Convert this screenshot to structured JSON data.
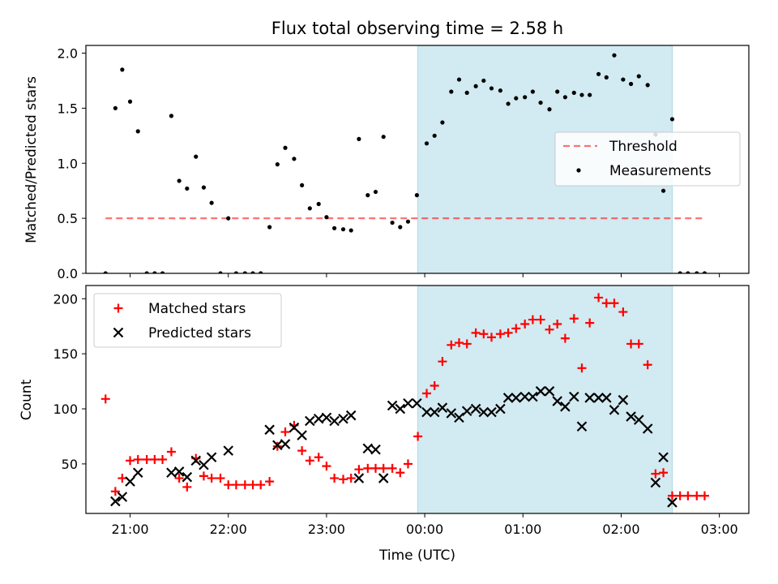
{
  "chart_data": {
    "title": "Flux total observing time = 2.58 h",
    "xlabel": "Time (UTC)",
    "x_unit": "hours UTC (values ≥ 24 are after midnight, tick labels wrap to 00:00)",
    "xlim": [
      20.55,
      27.3
    ],
    "x_ticks": [
      {
        "x": 21,
        "label": "21:00"
      },
      {
        "x": 22,
        "label": "22:00"
      },
      {
        "x": 23,
        "label": "23:00"
      },
      {
        "x": 24,
        "label": "00:00"
      },
      {
        "x": 25,
        "label": "01:00"
      },
      {
        "x": 26,
        "label": "02:00"
      },
      {
        "x": 27,
        "label": "03:00"
      }
    ],
    "shaded_interval": [
      23.93,
      26.52
    ],
    "colors": {
      "shade": "#add8e6",
      "threshold": "#ff0000",
      "matched": "#ff0000",
      "predicted": "#000000",
      "measurement": "#000000"
    },
    "panels": [
      {
        "id": "top",
        "type": "scatter",
        "ylabel": "Matched/Predicted stars",
        "ylim": [
          0,
          2.07
        ],
        "y_ticks": [
          0.0,
          0.5,
          1.0,
          1.5,
          2.0
        ],
        "y_tick_labels": [
          "0.0",
          "0.5",
          "1.0",
          "1.5",
          "2.0"
        ],
        "legend": {
          "position": "center-right",
          "entries": [
            "Threshold",
            "Measurements"
          ]
        },
        "series": [
          {
            "name": "Threshold",
            "type": "line",
            "style": "dashed",
            "x": [
              20.75,
              26.85
            ],
            "y": [
              0.5,
              0.5
            ]
          },
          {
            "name": "Measurements",
            "type": "scatter",
            "marker": "dot",
            "x": [
              20.75,
              20.85,
              20.92,
              21.0,
              21.08,
              21.17,
              21.25,
              21.33,
              21.42,
              21.5,
              21.58,
              21.67,
              21.75,
              21.83,
              21.92,
              22.0,
              22.08,
              22.17,
              22.25,
              22.33,
              22.42,
              22.5,
              22.58,
              22.67,
              22.75,
              22.83,
              22.92,
              23.0,
              23.08,
              23.17,
              23.25,
              23.33,
              23.42,
              23.5,
              23.58,
              23.67,
              23.75,
              23.83,
              23.92,
              24.02,
              24.1,
              24.18,
              24.27,
              24.35,
              24.43,
              24.52,
              24.6,
              24.68,
              24.77,
              24.85,
              24.93,
              25.02,
              25.1,
              25.18,
              25.27,
              25.35,
              25.43,
              25.52,
              25.6,
              25.68,
              25.77,
              25.85,
              25.93,
              26.02,
              26.1,
              26.18,
              26.27,
              26.35,
              26.43,
              26.52,
              26.6,
              26.68,
              26.77,
              26.85
            ],
            "y": [
              0.0,
              1.5,
              1.85,
              1.56,
              1.29,
              0.0,
              0.0,
              0.0,
              1.43,
              0.84,
              0.77,
              1.06,
              0.78,
              0.64,
              0.0,
              0.5,
              0.0,
              0.0,
              0.0,
              0.0,
              0.42,
              0.99,
              1.14,
              1.04,
              0.8,
              0.59,
              0.63,
              0.51,
              0.41,
              0.4,
              0.39,
              1.22,
              0.71,
              0.74,
              1.24,
              0.46,
              0.42,
              0.47,
              0.71,
              1.18,
              1.25,
              1.37,
              1.65,
              1.76,
              1.64,
              1.7,
              1.75,
              1.68,
              1.66,
              1.54,
              1.59,
              1.6,
              1.65,
              1.55,
              1.49,
              1.65,
              1.6,
              1.64,
              1.62,
              1.62,
              1.81,
              1.78,
              1.98,
              1.76,
              1.72,
              1.79,
              1.71,
              1.26,
              0.75,
              1.4,
              0.0,
              0.0,
              0.0,
              0.0
            ]
          }
        ]
      },
      {
        "id": "bottom",
        "type": "scatter",
        "ylabel": "Count",
        "ylim": [
          5,
          212
        ],
        "y_ticks": [
          50,
          100,
          150,
          200
        ],
        "y_tick_labels": [
          "50",
          "100",
          "150",
          "200"
        ],
        "legend": {
          "position": "top-left",
          "entries": [
            "Matched stars",
            "Predicted stars"
          ]
        },
        "series": [
          {
            "name": "Matched stars",
            "type": "scatter",
            "marker": "plus",
            "x": [
              20.75,
              20.85,
              20.92,
              21.0,
              21.08,
              21.17,
              21.25,
              21.33,
              21.42,
              21.5,
              21.58,
              21.67,
              21.75,
              21.83,
              21.92,
              22.0,
              22.08,
              22.17,
              22.25,
              22.33,
              22.42,
              22.5,
              22.58,
              22.67,
              22.75,
              22.83,
              22.92,
              23.0,
              23.08,
              23.17,
              23.25,
              23.33,
              23.42,
              23.5,
              23.58,
              23.67,
              23.75,
              23.83,
              23.93,
              24.02,
              24.1,
              24.18,
              24.27,
              24.35,
              24.43,
              24.52,
              24.6,
              24.68,
              24.77,
              24.85,
              24.93,
              25.02,
              25.1,
              25.18,
              25.27,
              25.35,
              25.43,
              25.52,
              25.6,
              25.68,
              25.77,
              25.85,
              25.93,
              26.02,
              26.1,
              26.18,
              26.27,
              26.35,
              26.43,
              26.52,
              26.6,
              26.68,
              26.77,
              26.85
            ],
            "y": [
              109,
              25,
              37,
              53,
              54,
              54,
              54,
              54,
              61,
              37,
              29,
              55,
              39,
              37,
              37,
              31,
              31,
              31,
              31,
              31,
              34,
              66,
              79,
              85,
              62,
              53,
              56,
              48,
              37,
              36,
              37,
              45,
              46,
              46,
              46,
              46,
              42,
              50,
              75,
              114,
              121,
              143,
              158,
              160,
              159,
              169,
              168,
              165,
              168,
              169,
              173,
              177,
              181,
              181,
              172,
              177,
              164,
              182,
              137,
              178,
              201,
              196,
              196,
              188,
              159,
              159,
              140,
              41,
              42,
              21,
              21,
              21,
              21,
              21
            ]
          },
          {
            "name": "Predicted stars",
            "type": "scatter",
            "marker": "x",
            "x": [
              20.85,
              20.92,
              21.0,
              21.08,
              21.42,
              21.5,
              21.58,
              21.67,
              21.75,
              21.83,
              22.0,
              22.42,
              22.5,
              22.58,
              22.67,
              22.75,
              22.83,
              22.92,
              23.0,
              23.08,
              23.17,
              23.25,
              23.33,
              23.42,
              23.5,
              23.58,
              23.67,
              23.75,
              23.83,
              23.92,
              24.02,
              24.1,
              24.18,
              24.27,
              24.35,
              24.43,
              24.52,
              24.6,
              24.68,
              24.77,
              24.85,
              24.93,
              25.02,
              25.1,
              25.18,
              25.27,
              25.35,
              25.43,
              25.52,
              25.6,
              25.68,
              25.77,
              25.85,
              25.93,
              26.02,
              26.1,
              26.18,
              26.27,
              26.35,
              26.43,
              26.52
            ],
            "y": [
              16,
              20,
              34,
              42,
              42,
              43,
              38,
              53,
              49,
              56,
              62,
              81,
              67,
              68,
              83,
              76,
              89,
              91,
              92,
              89,
              91,
              94,
              37,
              64,
              63,
              37,
              103,
              100,
              105,
              105,
              97,
              97,
              101,
              96,
              92,
              98,
              100,
              97,
              97,
              100,
              110,
              110,
              111,
              111,
              116,
              116,
              107,
              102,
              111,
              84,
              110,
              110,
              110,
              99,
              108,
              93,
              90,
              82,
              33,
              56,
              15
            ]
          }
        ]
      }
    ]
  }
}
